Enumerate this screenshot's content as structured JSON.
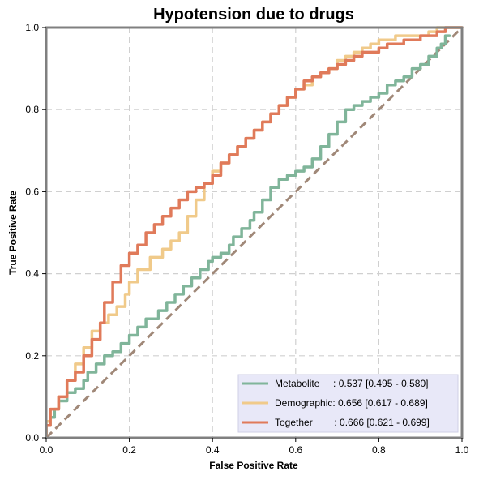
{
  "chart_data": {
    "type": "line",
    "title": "Hypotension due to drugs",
    "xlabel": "False Positive Rate",
    "ylabel": "True Positive Rate",
    "xlim": [
      0,
      1
    ],
    "ylim": [
      0,
      1
    ],
    "xticks": [
      0.0,
      0.2,
      0.4,
      0.6,
      0.8,
      1.0
    ],
    "yticks": [
      0.0,
      0.2,
      0.4,
      0.6,
      0.8,
      1.0
    ],
    "xtick_labels": [
      "0.0",
      "0.2",
      "0.4",
      "0.6",
      "0.8",
      "1.0"
    ],
    "ytick_labels": [
      "0.0",
      "0.2",
      "0.4",
      "0.6",
      "0.8",
      "1.0"
    ],
    "grid": true,
    "legend_position": "lower-right",
    "diagonal": {
      "color": "#a08878",
      "style": "dashed",
      "points": [
        [
          0,
          0
        ],
        [
          1,
          1
        ]
      ]
    },
    "series": [
      {
        "name": "Metabolite",
        "legend_label": "Metabolite     : 0.537 [0.495 - 0.580]",
        "color": "#80b59a",
        "points": [
          [
            0,
            0
          ],
          [
            0.01,
            0.03
          ],
          [
            0.02,
            0.05
          ],
          [
            0.03,
            0.07
          ],
          [
            0.05,
            0.09
          ],
          [
            0.07,
            0.11
          ],
          [
            0.09,
            0.12
          ],
          [
            0.1,
            0.14
          ],
          [
            0.12,
            0.16
          ],
          [
            0.14,
            0.18
          ],
          [
            0.16,
            0.2
          ],
          [
            0.18,
            0.21
          ],
          [
            0.2,
            0.23
          ],
          [
            0.22,
            0.25
          ],
          [
            0.24,
            0.27
          ],
          [
            0.27,
            0.29
          ],
          [
            0.29,
            0.31
          ],
          [
            0.31,
            0.33
          ],
          [
            0.33,
            0.35
          ],
          [
            0.35,
            0.37
          ],
          [
            0.37,
            0.39
          ],
          [
            0.39,
            0.41
          ],
          [
            0.4,
            0.43
          ],
          [
            0.42,
            0.44
          ],
          [
            0.44,
            0.45
          ],
          [
            0.45,
            0.47
          ],
          [
            0.47,
            0.49
          ],
          [
            0.49,
            0.51
          ],
          [
            0.5,
            0.53
          ],
          [
            0.52,
            0.55
          ],
          [
            0.54,
            0.58
          ],
          [
            0.56,
            0.61
          ],
          [
            0.58,
            0.63
          ],
          [
            0.6,
            0.64
          ],
          [
            0.62,
            0.65
          ],
          [
            0.64,
            0.66
          ],
          [
            0.66,
            0.68
          ],
          [
            0.68,
            0.71
          ],
          [
            0.7,
            0.74
          ],
          [
            0.72,
            0.77
          ],
          [
            0.74,
            0.8
          ],
          [
            0.76,
            0.81
          ],
          [
            0.78,
            0.82
          ],
          [
            0.8,
            0.83
          ],
          [
            0.82,
            0.84
          ],
          [
            0.84,
            0.86
          ],
          [
            0.86,
            0.87
          ],
          [
            0.88,
            0.88
          ],
          [
            0.9,
            0.9
          ],
          [
            0.92,
            0.91
          ],
          [
            0.94,
            0.93
          ],
          [
            0.95,
            0.95
          ],
          [
            0.96,
            0.96
          ],
          [
            0.97,
            0.98
          ]
        ]
      },
      {
        "name": "Demographic",
        "legend_label": "Demographic: 0.656 [0.617 - 0.689]",
        "color": "#f0ca8a",
        "points": [
          [
            0,
            0
          ],
          [
            0.01,
            0.04
          ],
          [
            0.03,
            0.07
          ],
          [
            0.05,
            0.1
          ],
          [
            0.07,
            0.14
          ],
          [
            0.09,
            0.18
          ],
          [
            0.11,
            0.22
          ],
          [
            0.13,
            0.26
          ],
          [
            0.15,
            0.28
          ],
          [
            0.17,
            0.3
          ],
          [
            0.19,
            0.32
          ],
          [
            0.2,
            0.35
          ],
          [
            0.22,
            0.38
          ],
          [
            0.25,
            0.41
          ],
          [
            0.28,
            0.44
          ],
          [
            0.3,
            0.46
          ],
          [
            0.32,
            0.48
          ],
          [
            0.34,
            0.5
          ],
          [
            0.36,
            0.54
          ],
          [
            0.38,
            0.58
          ],
          [
            0.4,
            0.62
          ],
          [
            0.42,
            0.65
          ],
          [
            0.44,
            0.67
          ],
          [
            0.46,
            0.69
          ],
          [
            0.48,
            0.71
          ],
          [
            0.5,
            0.73
          ],
          [
            0.52,
            0.75
          ],
          [
            0.54,
            0.77
          ],
          [
            0.56,
            0.79
          ],
          [
            0.58,
            0.81
          ],
          [
            0.6,
            0.83
          ],
          [
            0.62,
            0.85
          ],
          [
            0.64,
            0.86
          ],
          [
            0.66,
            0.88
          ],
          [
            0.68,
            0.89
          ],
          [
            0.7,
            0.9
          ],
          [
            0.72,
            0.92
          ],
          [
            0.74,
            0.93
          ],
          [
            0.76,
            0.94
          ],
          [
            0.78,
            0.95
          ],
          [
            0.8,
            0.96
          ],
          [
            0.82,
            0.97
          ],
          [
            0.84,
            0.97
          ],
          [
            0.86,
            0.98
          ],
          [
            0.88,
            0.98
          ],
          [
            0.9,
            0.98
          ],
          [
            0.92,
            0.98
          ],
          [
            0.94,
            0.99
          ],
          [
            0.96,
            1.0
          ],
          [
            0.98,
            1.0
          ],
          [
            1.0,
            1.0
          ]
        ]
      },
      {
        "name": "Together",
        "legend_label": "Together        : 0.666 [0.621 - 0.699]",
        "color": "#e07a5a",
        "points": [
          [
            0,
            0
          ],
          [
            0.01,
            0.03
          ],
          [
            0.03,
            0.07
          ],
          [
            0.05,
            0.1
          ],
          [
            0.07,
            0.14
          ],
          [
            0.09,
            0.16
          ],
          [
            0.11,
            0.2
          ],
          [
            0.13,
            0.24
          ],
          [
            0.14,
            0.28
          ],
          [
            0.16,
            0.33
          ],
          [
            0.18,
            0.38
          ],
          [
            0.2,
            0.42
          ],
          [
            0.22,
            0.45
          ],
          [
            0.24,
            0.47
          ],
          [
            0.26,
            0.5
          ],
          [
            0.28,
            0.52
          ],
          [
            0.3,
            0.54
          ],
          [
            0.32,
            0.56
          ],
          [
            0.34,
            0.58
          ],
          [
            0.36,
            0.6
          ],
          [
            0.38,
            0.61
          ],
          [
            0.4,
            0.62
          ],
          [
            0.42,
            0.64
          ],
          [
            0.44,
            0.67
          ],
          [
            0.46,
            0.69
          ],
          [
            0.48,
            0.71
          ],
          [
            0.5,
            0.73
          ],
          [
            0.52,
            0.75
          ],
          [
            0.54,
            0.77
          ],
          [
            0.56,
            0.79
          ],
          [
            0.58,
            0.81
          ],
          [
            0.6,
            0.83
          ],
          [
            0.62,
            0.85
          ],
          [
            0.64,
            0.87
          ],
          [
            0.66,
            0.88
          ],
          [
            0.68,
            0.89
          ],
          [
            0.7,
            0.9
          ],
          [
            0.72,
            0.91
          ],
          [
            0.74,
            0.92
          ],
          [
            0.76,
            0.93
          ],
          [
            0.78,
            0.94
          ],
          [
            0.8,
            0.94
          ],
          [
            0.82,
            0.95
          ],
          [
            0.84,
            0.96
          ],
          [
            0.86,
            0.96
          ],
          [
            0.88,
            0.97
          ],
          [
            0.9,
            0.97
          ],
          [
            0.92,
            0.98
          ],
          [
            0.94,
            0.98
          ],
          [
            0.96,
            0.99
          ],
          [
            0.98,
            1.0
          ],
          [
            1.0,
            1.0
          ]
        ]
      }
    ]
  }
}
